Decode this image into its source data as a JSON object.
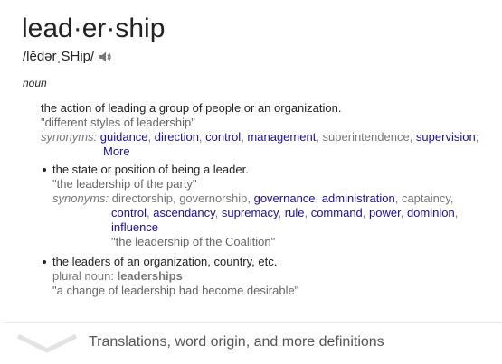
{
  "entry": {
    "headword": "lead·er·ship",
    "phonetic": "/lēdərˌSHip/",
    "speaker_icon": "speaker-icon",
    "part_of_speech": "noun"
  },
  "senses": [
    {
      "definition": "the action of leading a group of people or an organization.",
      "example": "\"different styles of leadership\"",
      "synonyms_label": "synonyms:",
      "synonyms_line1": [
        "guidance",
        "direction",
        "control",
        "management",
        "superintendence",
        "supervision"
      ],
      "synonyms_line2": [
        "More"
      ]
    },
    {
      "definition": "the state or position of being a leader.",
      "example": "\"the leadership of the party\"",
      "synonyms_label": "synonyms:",
      "synonyms_line1": [
        "directorship",
        "governorship",
        "governance",
        "administration",
        "captaincy"
      ],
      "synonyms_line2": [
        "control",
        "ascendancy",
        "supremacy",
        "rule",
        "command",
        "power",
        "dominion"
      ],
      "synonyms_line3": [
        "influence"
      ],
      "synonym_example": "\"the leadership of the Coalition\""
    },
    {
      "definition": "the leaders of an organization, country, etc.",
      "plural_label": "plural noun:",
      "plural_value": "leaderships",
      "example": "\"a change of leadership had become desirable\""
    }
  ],
  "footer": {
    "text": "Translations, word origin, and more definitions",
    "chevron_icon": "chevron-down-icon"
  }
}
